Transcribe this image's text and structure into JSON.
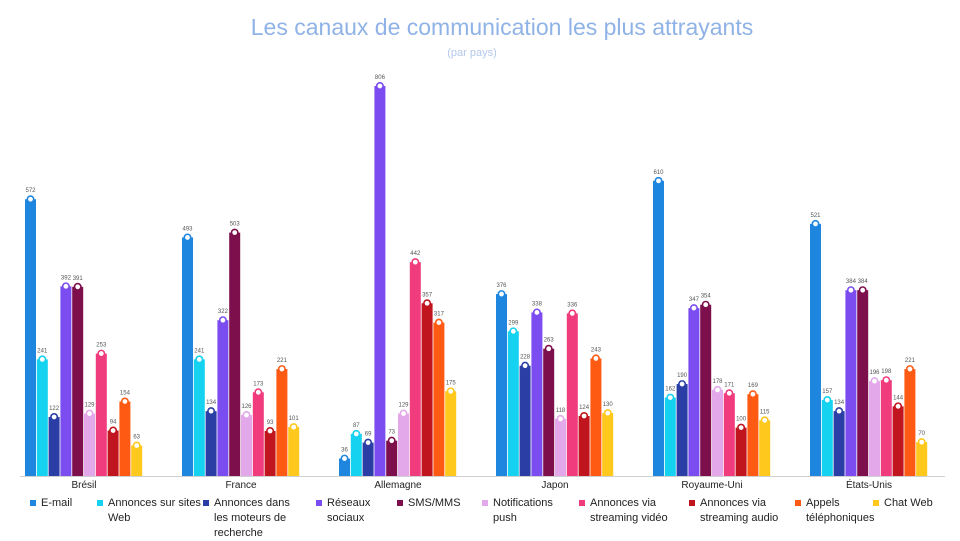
{
  "chart_data": {
    "type": "bar",
    "title": "Les canaux de communication les plus attrayants",
    "subtitle": "(par pays)",
    "xlabel": "",
    "ylabel": "",
    "ylim": [
      0,
      830
    ],
    "grid": false,
    "legend_position": "bottom",
    "categories": [
      "Brésil",
      "France",
      "Allemagne",
      "Japon",
      "Royaume-Uni",
      "États-Unis"
    ],
    "series": [
      {
        "name": "E-mail",
        "color": "#1f86e0",
        "values": [
          572,
          493,
          36,
          376,
          610,
          521
        ]
      },
      {
        "name": "Annonces sur sites Web",
        "color": "#15d2f0",
        "values": [
          241,
          241,
          87,
          299,
          162,
          157
        ]
      },
      {
        "name": "Annonces dans les moteurs de recherche",
        "color": "#2a3ea6",
        "values": [
          122,
          134,
          69,
          228,
          190,
          134
        ]
      },
      {
        "name": "Réseaux sociaux",
        "color": "#7b4df0",
        "values": [
          392,
          322,
          806,
          338,
          347,
          384
        ]
      },
      {
        "name": "SMS/MMS",
        "color": "#7d0f4c",
        "values": [
          391,
          503,
          73,
          263,
          354,
          384
        ]
      },
      {
        "name": "Notifications push",
        "color": "#e3a8ea",
        "values": [
          129,
          126,
          129,
          118,
          178,
          196
        ]
      },
      {
        "name": "Annonces via streaming vidéo",
        "color": "#f03b7c",
        "values": [
          253,
          173,
          442,
          336,
          171,
          198
        ]
      },
      {
        "name": "Annonces via streaming audio",
        "color": "#c0141f",
        "values": [
          94,
          93,
          357,
          124,
          100,
          144
        ]
      },
      {
        "name": "Appels téléphoniques",
        "color": "#ff5a14",
        "values": [
          154,
          221,
          317,
          243,
          169,
          221
        ]
      },
      {
        "name": "Chat Web",
        "color": "#ffc81c",
        "values": [
          63,
          101,
          175,
          130,
          115,
          70
        ]
      }
    ]
  }
}
